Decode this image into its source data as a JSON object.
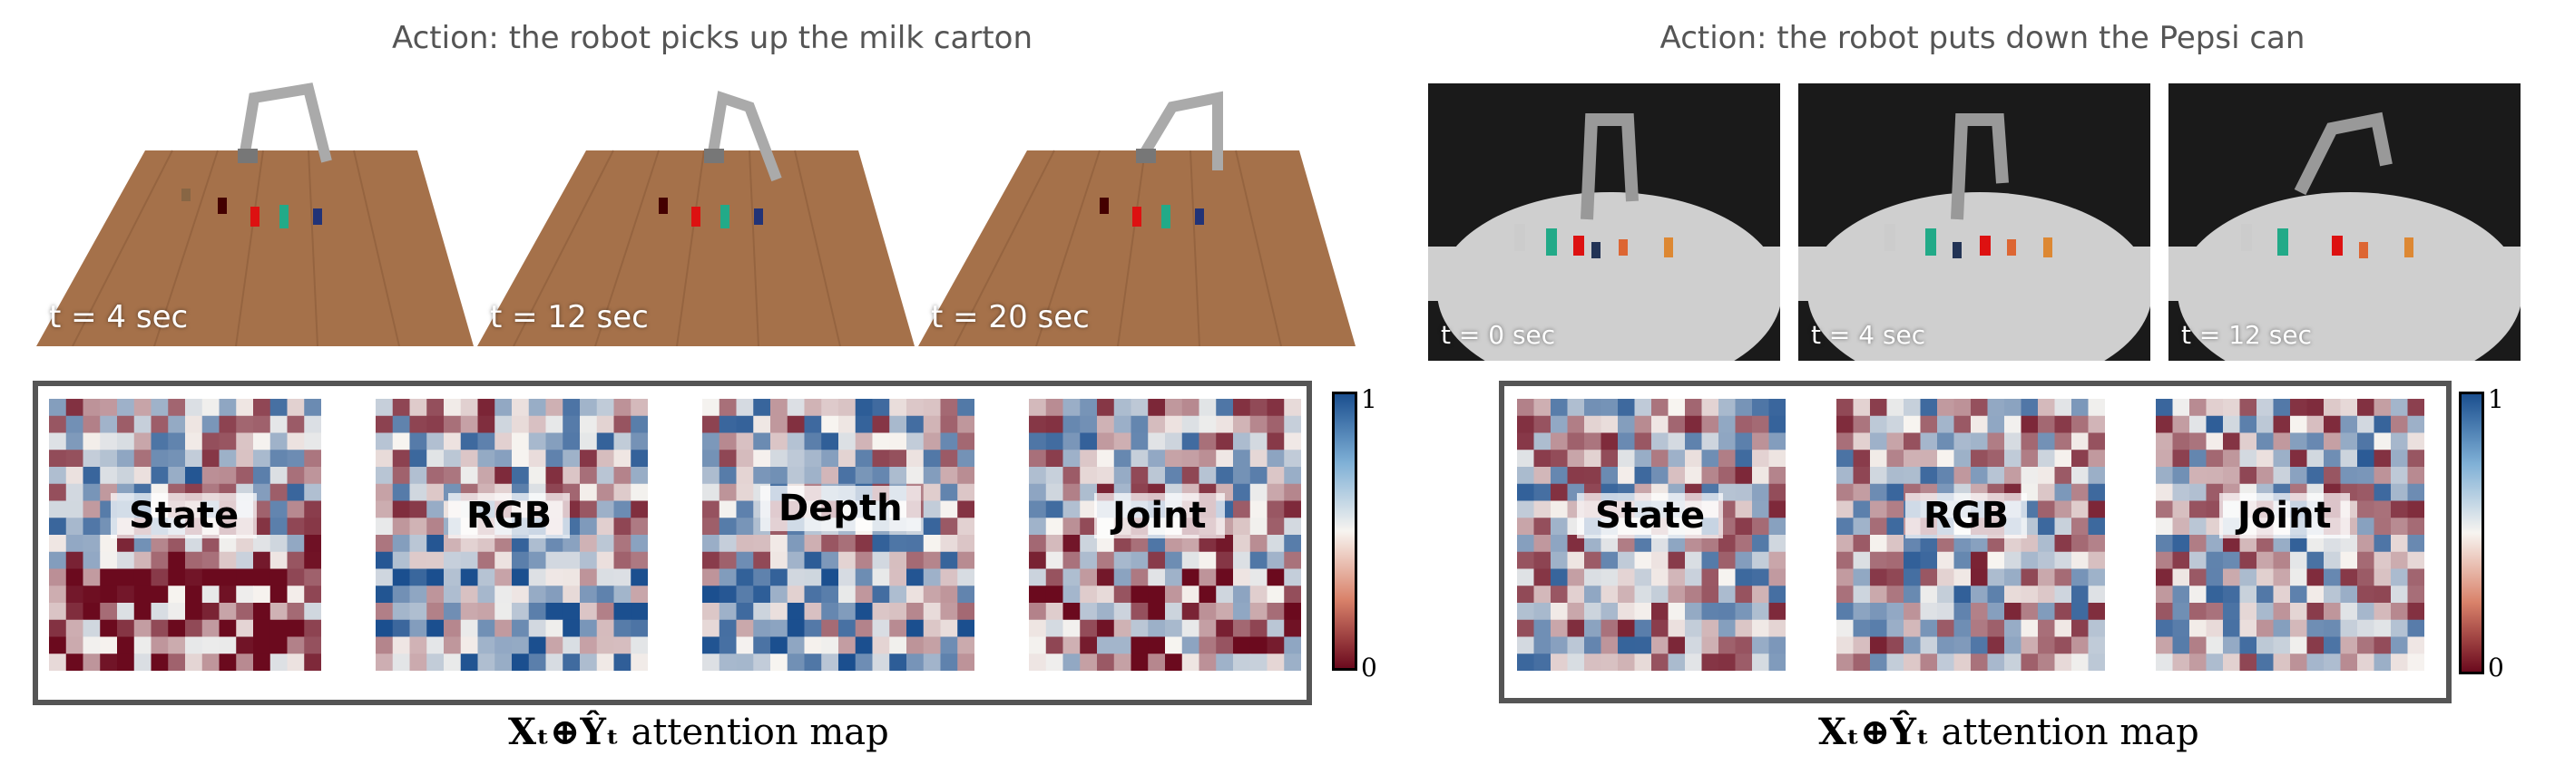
{
  "panels": [
    {
      "title": "Action: the robot picks up the milk carton",
      "frames": [
        "t = 4 sec",
        "t = 12 sec",
        "t = 20 sec"
      ],
      "maps": [
        "State",
        "RGB",
        "Depth",
        "Joint"
      ],
      "colorbar": {
        "max": "1",
        "min": "0"
      },
      "caption": {
        "math": "Xₜ⊕Ŷₜ",
        "text": "attention map"
      }
    },
    {
      "title": "Action: the robot puts down the Pepsi can",
      "frames": [
        "t = 0 sec",
        "t = 4 sec",
        "t = 12 sec"
      ],
      "maps": [
        "State",
        "RGB",
        "Joint"
      ],
      "colorbar": {
        "max": "1",
        "min": "0"
      },
      "caption": {
        "math": "Xₜ⊕Ŷₜ",
        "text": "attention map"
      }
    }
  ],
  "colors": {
    "high": "#1b4f8f",
    "mid": "#f7f4f0",
    "low": "#6b0a1e"
  }
}
